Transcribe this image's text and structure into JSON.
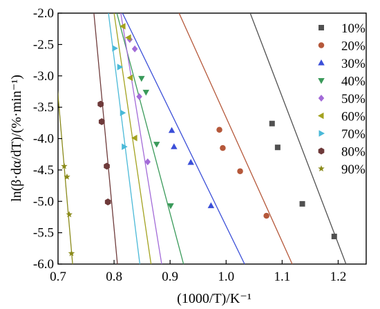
{
  "chart_data": {
    "type": "scatter",
    "xlabel": "(1000/T)/K⁻¹",
    "ylabel": "ln(β·dα/dT)/(%·min⁻¹)",
    "xlim": [
      0.7,
      1.25
    ],
    "ylim": [
      -6.0,
      -2.0
    ],
    "xticks": [
      "0.7",
      "0.8",
      "0.9",
      "1.0",
      "1.1",
      "1.2"
    ],
    "yticks": [
      "-2.0",
      "-2.5",
      "-3.0",
      "-3.5",
      "-4.0",
      "-4.5",
      "-5.0",
      "-5.5",
      "-6.0"
    ],
    "legend_position": "right",
    "series": [
      {
        "name": "10%",
        "color": "#505050",
        "marker": "square",
        "points": [
          [
            1.082,
            -3.76
          ],
          [
            1.092,
            -4.14
          ],
          [
            1.136,
            -5.04
          ],
          [
            1.193,
            -5.56
          ]
        ],
        "fit": [
          [
            1.043,
            -2.0
          ],
          [
            1.214,
            -6.0
          ]
        ]
      },
      {
        "name": "20%",
        "color": "#b5583a",
        "marker": "circle",
        "points": [
          [
            0.988,
            -3.86
          ],
          [
            0.994,
            -4.15
          ],
          [
            1.025,
            -4.52
          ],
          [
            1.072,
            -5.23
          ]
        ],
        "fit": [
          [
            0.916,
            -2.0
          ],
          [
            1.118,
            -6.0
          ]
        ]
      },
      {
        "name": "30%",
        "color": "#3b4fd8",
        "marker": "triangle-up",
        "points": [
          [
            0.903,
            -3.87
          ],
          [
            0.907,
            -4.13
          ],
          [
            0.937,
            -4.38
          ],
          [
            0.973,
            -5.07
          ]
        ],
        "fit": [
          [
            0.815,
            -2.0
          ],
          [
            1.033,
            -6.0
          ]
        ]
      },
      {
        "name": "40%",
        "color": "#3a9a5a",
        "marker": "triangle-down",
        "points": [
          [
            0.849,
            -3.04
          ],
          [
            0.857,
            -3.26
          ],
          [
            0.876,
            -4.09
          ],
          [
            0.901,
            -5.07
          ]
        ],
        "fit": [
          [
            0.805,
            -2.0
          ],
          [
            0.924,
            -6.0
          ]
        ]
      },
      {
        "name": "50%",
        "color": "#a26ad8",
        "marker": "diamond",
        "points": [
          [
            0.828,
            -2.42
          ],
          [
            0.837,
            -2.57
          ],
          [
            0.845,
            -3.33
          ],
          [
            0.86,
            -4.37
          ]
        ],
        "fit": [
          [
            0.812,
            -2.0
          ],
          [
            0.885,
            -6.0
          ]
        ]
      },
      {
        "name": "60%",
        "color": "#a3a21f",
        "marker": "triangle-left",
        "points": [
          [
            0.816,
            -2.21
          ],
          [
            0.826,
            -2.39
          ],
          [
            0.829,
            -3.03
          ],
          [
            0.837,
            -3.99
          ]
        ],
        "fit": [
          [
            0.8,
            -2.0
          ],
          [
            0.866,
            -6.0
          ]
        ]
      },
      {
        "name": "70%",
        "color": "#4ab9d8",
        "marker": "triangle-right",
        "points": [
          [
            0.801,
            -2.56
          ],
          [
            0.81,
            -2.86
          ],
          [
            0.815,
            -3.59
          ],
          [
            0.818,
            -4.13
          ]
        ],
        "fit": [
          [
            0.79,
            -2.0
          ],
          [
            0.846,
            -6.0
          ]
        ]
      },
      {
        "name": "80%",
        "color": "#6e3a3a",
        "marker": "hexagon",
        "points": [
          [
            0.776,
            -3.45
          ],
          [
            0.778,
            -3.73
          ],
          [
            0.787,
            -4.44
          ],
          [
            0.789,
            -5.01
          ]
        ],
        "fit": [
          [
            0.764,
            -2.0
          ],
          [
            0.806,
            -6.0
          ]
        ]
      },
      {
        "name": "90%",
        "color": "#8a8a1a",
        "marker": "star",
        "points": [
          [
            0.711,
            -4.44
          ],
          [
            0.716,
            -4.61
          ],
          [
            0.72,
            -5.21
          ],
          [
            0.724,
            -5.83
          ]
        ],
        "fit": [
          [
            0.697,
            -3.0
          ],
          [
            0.726,
            -6.0
          ]
        ]
      }
    ]
  }
}
